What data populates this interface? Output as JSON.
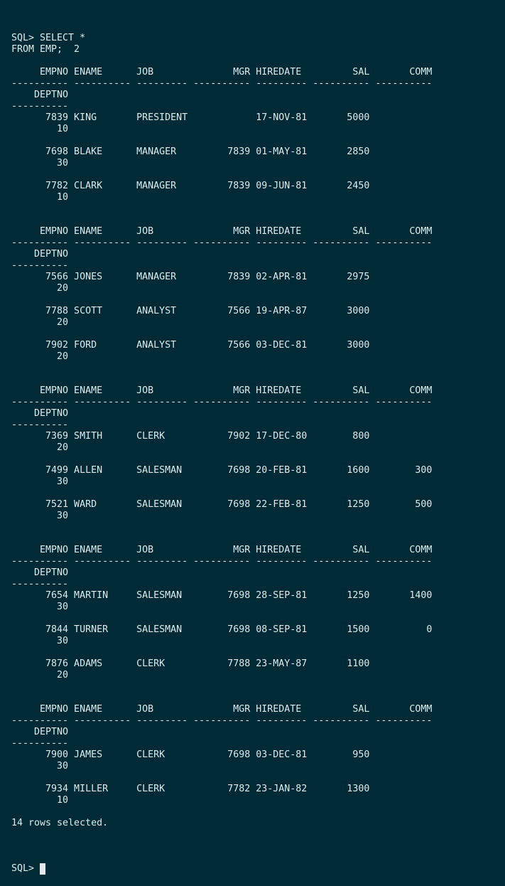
{
  "terminal": {
    "lines": [
      "SQL> SELECT *",
      "FROM EMP;  2",
      "",
      "     EMPNO ENAME      JOB              MGR HIREDATE         SAL       COMM",
      "---------- ---------- --------- ---------- --------- ---------- ----------",
      "    DEPTNO",
      "----------",
      "      7839 KING       PRESIDENT            17-NOV-81       5000",
      "        10",
      "",
      "      7698 BLAKE      MANAGER         7839 01-MAY-81       2850",
      "        30",
      "",
      "      7782 CLARK      MANAGER         7839 09-JUN-81       2450",
      "        10",
      "",
      "",
      "     EMPNO ENAME      JOB              MGR HIREDATE         SAL       COMM",
      "---------- ---------- --------- ---------- --------- ---------- ----------",
      "    DEPTNO",
      "----------",
      "      7566 JONES      MANAGER         7839 02-APR-81       2975",
      "        20",
      "",
      "      7788 SCOTT      ANALYST         7566 19-APR-87       3000",
      "        20",
      "",
      "      7902 FORD       ANALYST         7566 03-DEC-81       3000",
      "        20",
      "",
      "",
      "     EMPNO ENAME      JOB              MGR HIREDATE         SAL       COMM",
      "---------- ---------- --------- ---------- --------- ---------- ----------",
      "    DEPTNO",
      "----------",
      "      7369 SMITH      CLERK           7902 17-DEC-80        800",
      "        20",
      "",
      "      7499 ALLEN      SALESMAN        7698 20-FEB-81       1600        300",
      "        30",
      "",
      "      7521 WARD       SALESMAN        7698 22-FEB-81       1250        500",
      "        30",
      "",
      "",
      "     EMPNO ENAME      JOB              MGR HIREDATE         SAL       COMM",
      "---------- ---------- --------- ---------- --------- ---------- ----------",
      "    DEPTNO",
      "----------",
      "      7654 MARTIN     SALESMAN        7698 28-SEP-81       1250       1400",
      "        30",
      "",
      "      7844 TURNER     SALESMAN        7698 08-SEP-81       1500          0",
      "        30",
      "",
      "      7876 ADAMS      CLERK           7788 23-MAY-87       1100",
      "        20",
      "",
      "",
      "     EMPNO ENAME      JOB              MGR HIREDATE         SAL       COMM",
      "---------- ---------- --------- ---------- --------- ---------- ----------",
      "    DEPTNO",
      "----------",
      "      7900 JAMES      CLERK           7698 03-DEC-81        950",
      "        30",
      "",
      "      7934 MILLER     CLERK           7782 23-JAN-82       1300",
      "        10",
      "",
      "14 rows selected.",
      ""
    ],
    "prompt": "SQL> "
  },
  "colors": {
    "background": "#002b36",
    "foreground": "#e4e8ea"
  }
}
